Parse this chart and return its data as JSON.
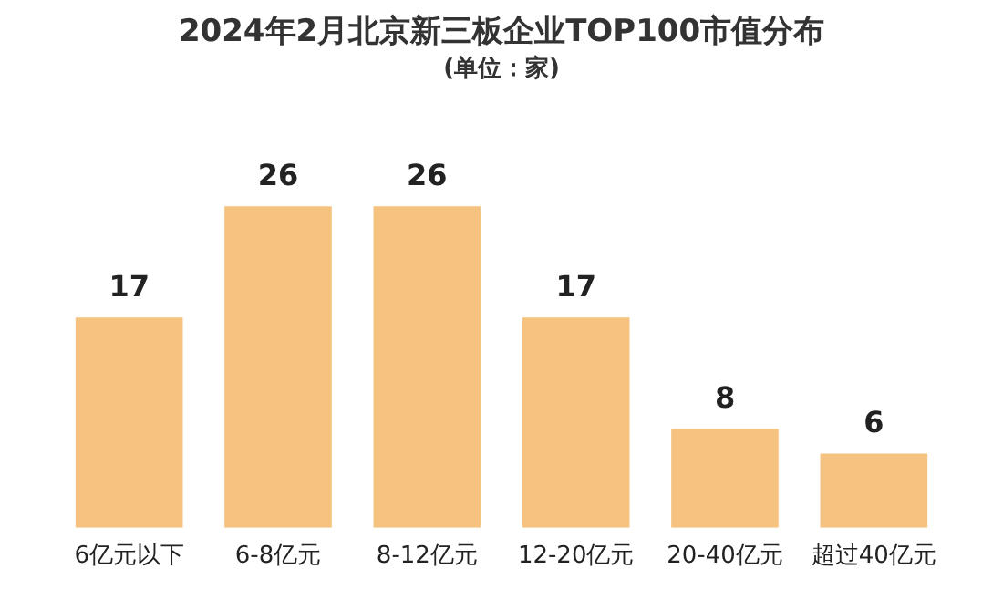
{
  "chart_data": {
    "type": "bar",
    "title": "2024年2月北京新三板企业TOP100市值分布",
    "subtitle": "(单位：家)",
    "categories": [
      "6亿元以下",
      "6-8亿元",
      "8-12亿元",
      "12-20亿元",
      "20-40亿元",
      "超过40亿元"
    ],
    "values": [
      17,
      26,
      26,
      17,
      8,
      6
    ],
    "color": "#f6c27f",
    "data_labels": true,
    "grid": false,
    "legend": false
  }
}
